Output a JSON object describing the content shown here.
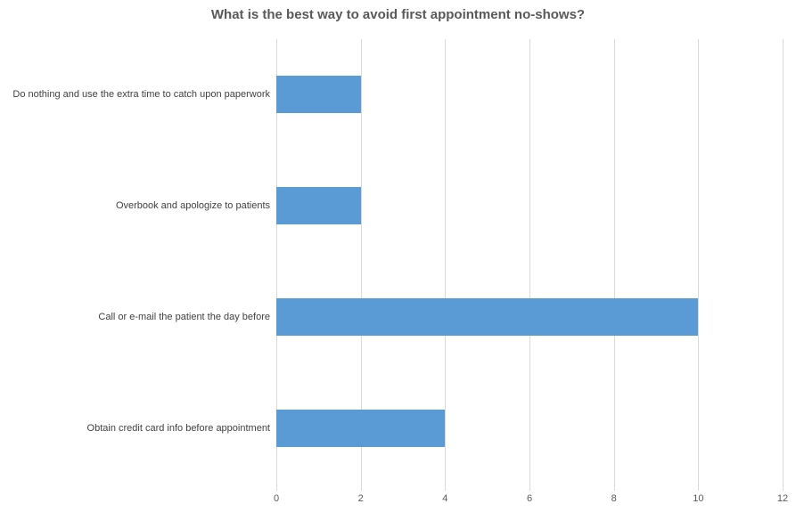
{
  "title": "What is the best way to avoid first appointment no-shows?",
  "chart_data": {
    "type": "bar",
    "orientation": "horizontal",
    "title": "What is the best way to avoid first appointment no-shows?",
    "categories": [
      "Do nothing and use the extra time to catch upon paperwork",
      "Overbook and apologize to patients",
      "Call or e-mail the patient the day before",
      "Obtain credit card info before appointment"
    ],
    "values": [
      2,
      2,
      10,
      4
    ],
    "xlabel": "",
    "ylabel": "",
    "xlim": [
      0,
      12
    ],
    "xticks": [
      0,
      2,
      4,
      6,
      8,
      10,
      12
    ],
    "grid": true,
    "legend_position": "none",
    "colors": {
      "bar": "#5b9bd5",
      "gridline": "#d9d9d9",
      "title_text": "#595959",
      "category_text": "#404040",
      "tick_text": "#595959",
      "background": "#ffffff"
    }
  }
}
